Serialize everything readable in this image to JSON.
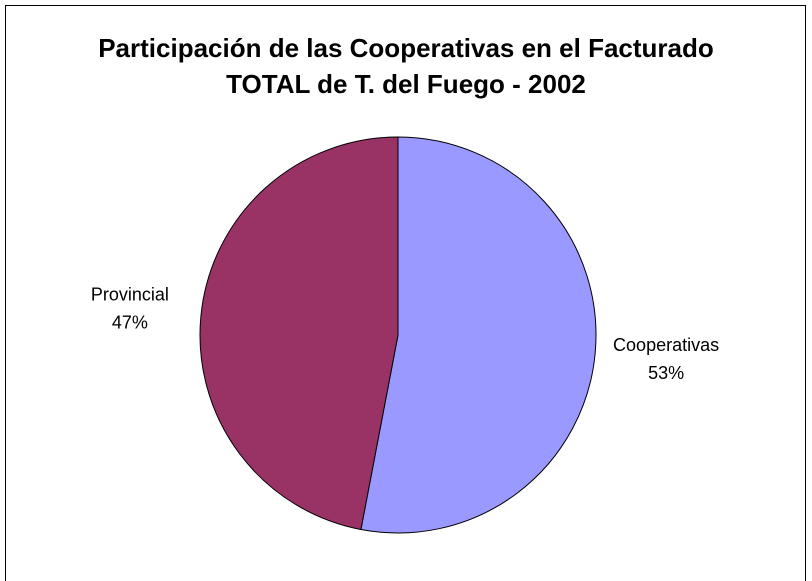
{
  "chart_data": {
    "type": "pie",
    "title": "Participación de las Cooperativas en el Facturado TOTAL de T. del Fuego - 2002",
    "categories": [
      "Cooperativas",
      "Provincial"
    ],
    "values": [
      53,
      47
    ],
    "value_labels": [
      "53%",
      "47%"
    ],
    "colors": [
      "#9999ff",
      "#993366"
    ]
  }
}
